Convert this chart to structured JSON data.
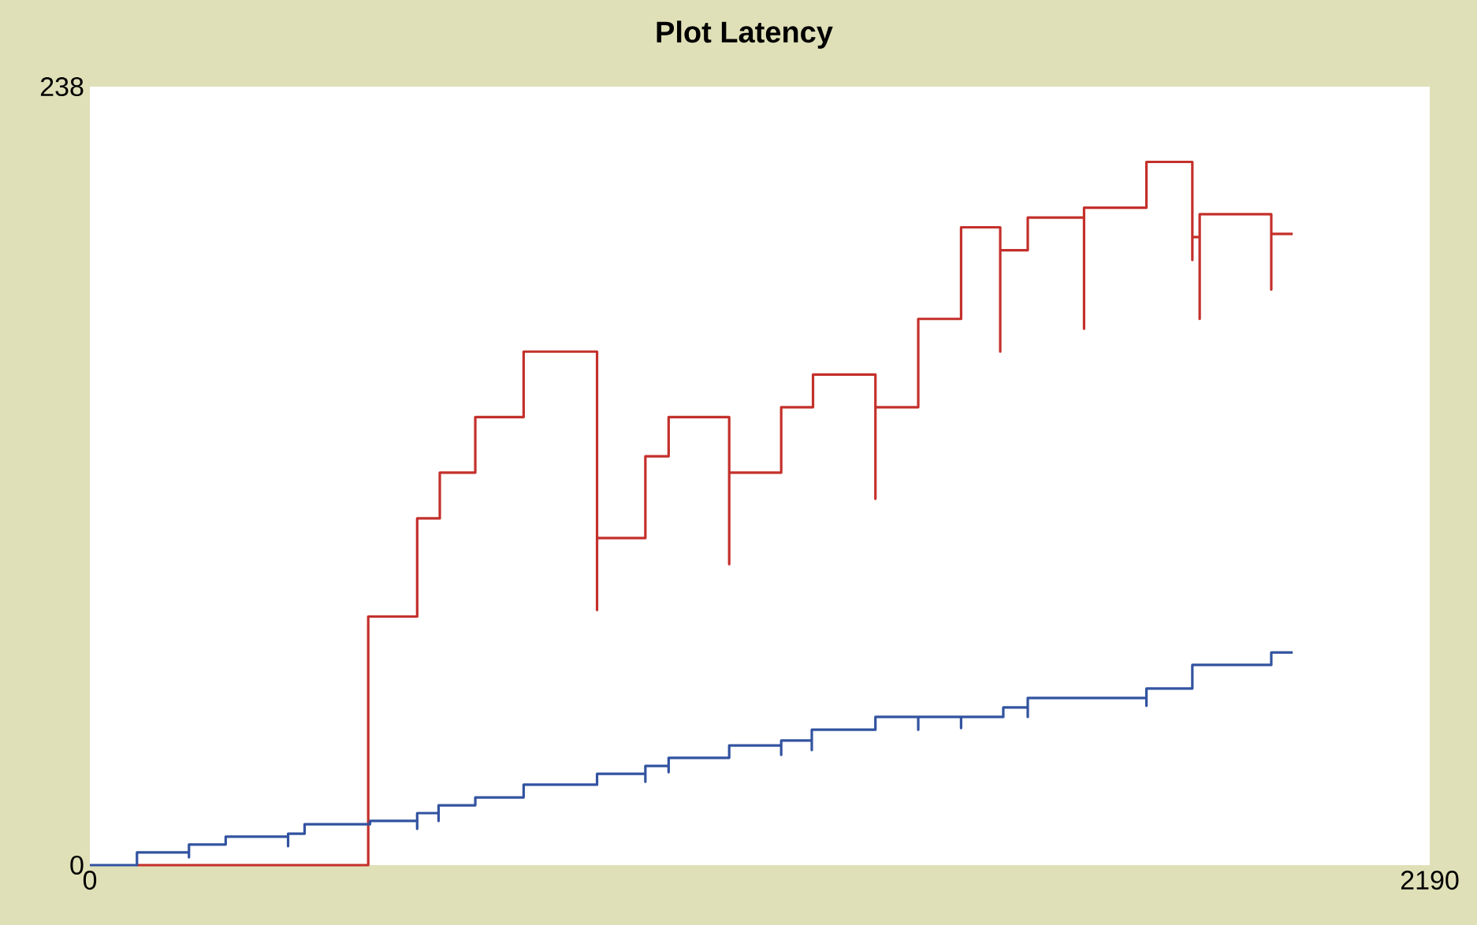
{
  "chart_data": {
    "type": "line",
    "title": "Plot Latency",
    "xlim": [
      0,
      2190
    ],
    "ylim": [
      0,
      238
    ],
    "xticks": [
      0,
      2190
    ],
    "yticks": [
      0,
      238
    ],
    "series": [
      {
        "color": "#c4302b",
        "x": [
          77,
          455,
          455,
          535,
          535,
          572,
          572,
          630,
          630,
          709,
          709,
          829,
          829,
          829,
          908,
          908,
          946,
          946,
          1045,
          1045,
          1045,
          1130,
          1130,
          1182,
          1182,
          1284,
          1284,
          1284,
          1354,
          1354,
          1424,
          1424,
          1488,
          1488,
          1488,
          1533,
          1533,
          1625,
          1625,
          1625,
          1727,
          1727,
          1802,
          1802,
          1802,
          1814,
          1814,
          1814,
          1931,
          1931,
          1931,
          1966
        ],
        "values": [
          0,
          0,
          76,
          76,
          106,
          106,
          120,
          120,
          137,
          137,
          157,
          157,
          78,
          100,
          100,
          125,
          125,
          137,
          137,
          92,
          120,
          120,
          140,
          140,
          150,
          150,
          112,
          140,
          140,
          167,
          167,
          195,
          195,
          157,
          188,
          188,
          198,
          198,
          164,
          201,
          201,
          215,
          215,
          185,
          192,
          192,
          167,
          199,
          199,
          176,
          193,
          193
        ]
      },
      {
        "color": "#3253a0",
        "x": [
          0,
          77,
          77,
          162,
          162,
          162,
          222,
          222,
          324,
          324,
          324,
          351,
          351,
          458,
          458,
          535,
          535,
          535,
          570,
          570,
          570,
          630,
          630,
          709,
          709,
          829,
          829,
          908,
          908,
          908,
          946,
          946,
          946,
          1045,
          1045,
          1130,
          1130,
          1130,
          1180,
          1180,
          1180,
          1284,
          1284,
          1354,
          1354,
          1354,
          1424,
          1424,
          1424,
          1493,
          1493,
          1533,
          1533,
          1533,
          1727,
          1727,
          1727,
          1802,
          1802,
          1931,
          1931,
          1966
        ],
        "values": [
          0,
          0,
          3.9,
          3.9,
          2.4,
          6.3,
          6.3,
          8.7,
          8.7,
          5.8,
          9.6,
          9.6,
          12.5,
          12.5,
          13.5,
          13.5,
          11.1,
          15.9,
          15.9,
          13.5,
          18.3,
          18.3,
          20.7,
          20.7,
          24.6,
          24.6,
          27.9,
          27.9,
          25.5,
          30.3,
          30.3,
          28.4,
          32.8,
          32.8,
          36.6,
          36.6,
          33.7,
          38.1,
          38.1,
          35.2,
          41.4,
          41.4,
          45.3,
          45.3,
          41.4,
          45.3,
          45.3,
          41.9,
          45.3,
          45.3,
          48.2,
          48.2,
          45.3,
          51.1,
          51.1,
          48.7,
          54.0,
          54.0,
          61.2,
          61.2,
          65.0,
          65.0
        ]
      }
    ]
  }
}
